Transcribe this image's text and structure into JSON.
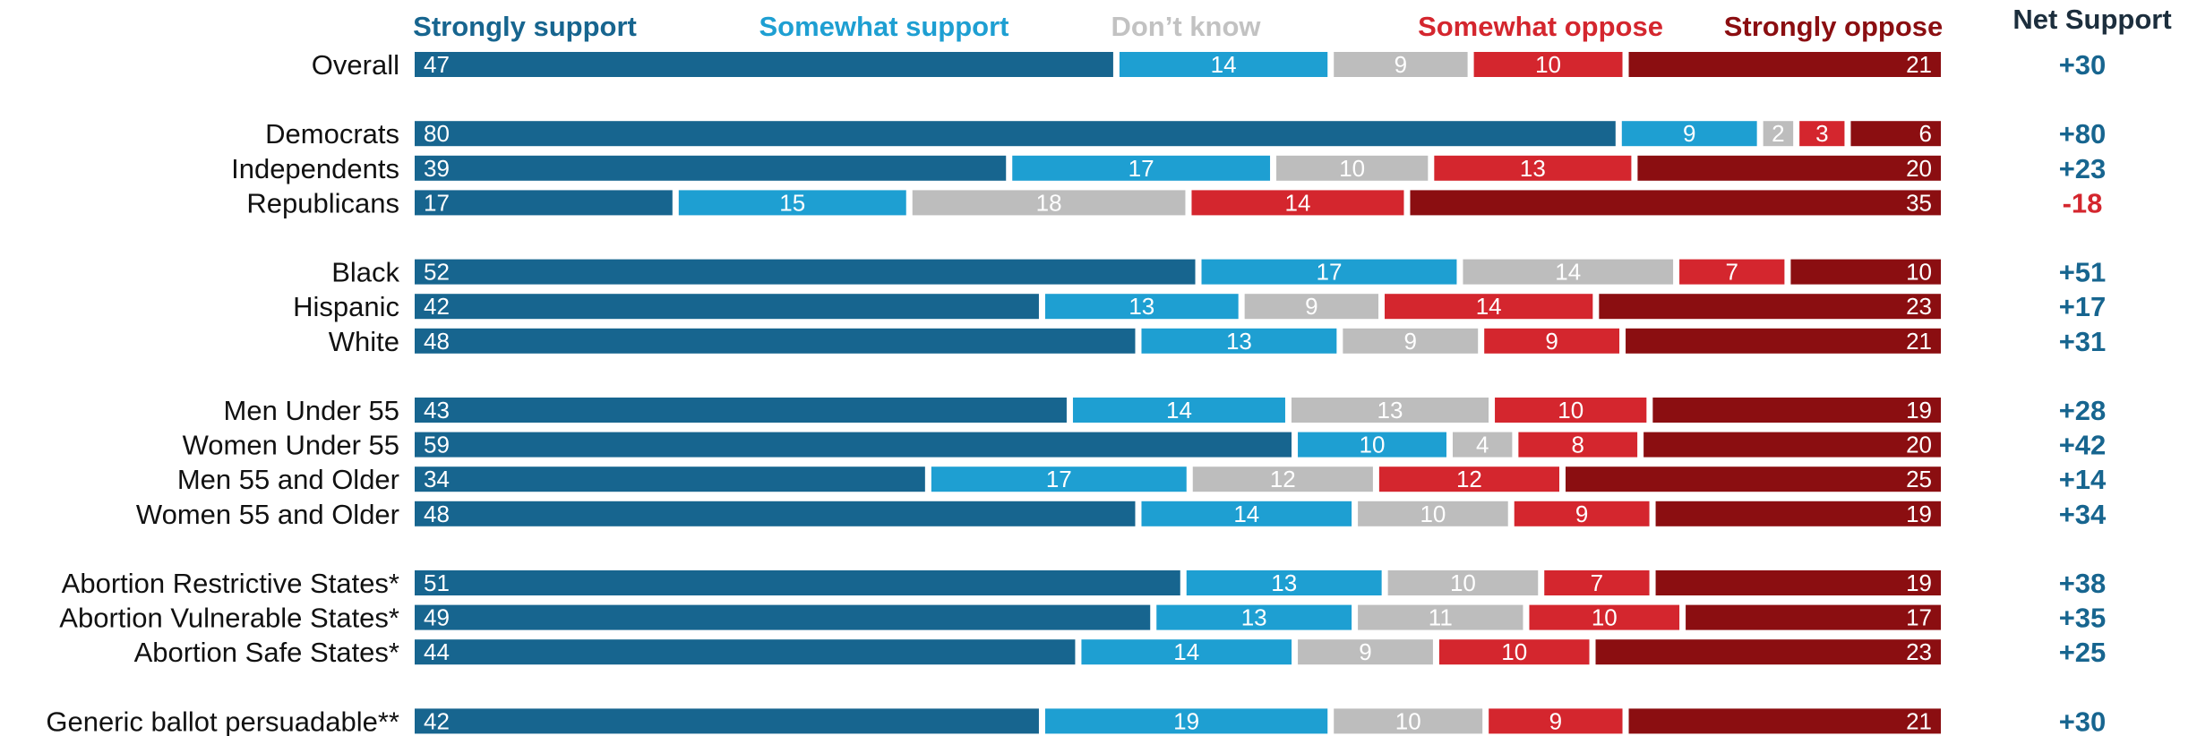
{
  "chart_data": {
    "type": "bar",
    "orientation": "horizontal",
    "stacked": true,
    "percent_total": true,
    "legend_position": "top",
    "net_header": "Net Support",
    "series": [
      {
        "name": "Strongly support",
        "color": "#17658f",
        "label_color": "#ffffff"
      },
      {
        "name": "Somewhat support",
        "color": "#1e9fd2",
        "label_color": "#ffffff"
      },
      {
        "name": "Don’t know",
        "color": "#bdbdbd",
        "label_color": "#ffffff"
      },
      {
        "name": "Somewhat oppose",
        "color": "#d4262e",
        "label_color": "#ffffff"
      },
      {
        "name": "Strongly oppose",
        "color": "#8b0e11",
        "label_color": "#ffffff"
      }
    ],
    "net_colors": {
      "positive": "#17658f",
      "negative": "#d4262e"
    },
    "groups": [
      {
        "rows": [
          {
            "label": "Overall",
            "values": [
              47,
              14,
              9,
              10,
              21
            ],
            "net": "+30"
          }
        ]
      },
      {
        "rows": [
          {
            "label": "Democrats",
            "values": [
              80,
              9,
              2,
              3,
              6
            ],
            "net": "+80"
          },
          {
            "label": "Independents",
            "values": [
              39,
              17,
              10,
              13,
              20
            ],
            "net": "+23"
          },
          {
            "label": "Republicans",
            "values": [
              17,
              15,
              18,
              14,
              35
            ],
            "net": "-18"
          }
        ]
      },
      {
        "rows": [
          {
            "label": "Black",
            "values": [
              52,
              17,
              14,
              7,
              10
            ],
            "net": "+51"
          },
          {
            "label": "Hispanic",
            "values": [
              42,
              13,
              9,
              14,
              23
            ],
            "net": "+17"
          },
          {
            "label": "White",
            "values": [
              48,
              13,
              9,
              9,
              21
            ],
            "net": "+31"
          }
        ]
      },
      {
        "rows": [
          {
            "label": "Men Under 55",
            "values": [
              43,
              14,
              13,
              10,
              19
            ],
            "net": "+28"
          },
          {
            "label": "Women Under 55",
            "values": [
              59,
              10,
              4,
              8,
              20
            ],
            "net": "+42"
          },
          {
            "label": "Men 55 and Older",
            "values": [
              34,
              17,
              12,
              12,
              25
            ],
            "net": "+14"
          },
          {
            "label": "Women 55 and Older",
            "values": [
              48,
              14,
              10,
              9,
              19
            ],
            "net": "+34"
          }
        ]
      },
      {
        "rows": [
          {
            "label": "Abortion Restrictive States*",
            "values": [
              51,
              13,
              10,
              7,
              19
            ],
            "net": "+38"
          },
          {
            "label": "Abortion Vulnerable States*",
            "values": [
              49,
              13,
              11,
              10,
              17
            ],
            "net": "+35"
          },
          {
            "label": "Abortion Safe States*",
            "values": [
              44,
              14,
              9,
              10,
              23
            ],
            "net": "+25"
          }
        ]
      },
      {
        "rows": [
          {
            "label": "Generic ballot persuadable**",
            "values": [
              42,
              19,
              10,
              9,
              21
            ],
            "net": "+30"
          }
        ]
      }
    ]
  }
}
